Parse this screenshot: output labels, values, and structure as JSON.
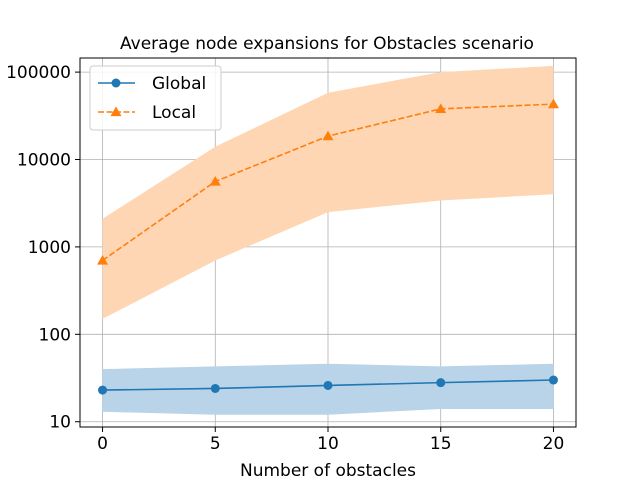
{
  "chart_data": {
    "type": "line",
    "title": "Average node expansions for Obstacles scenario",
    "xlabel": "Number of obstacles",
    "ylabel": "",
    "yscale": "log",
    "x": [
      0,
      5,
      10,
      15,
      20
    ],
    "xlim": [
      -1,
      21
    ],
    "ylim": [
      8.7,
      145000
    ],
    "xticks": [
      0,
      5,
      10,
      15,
      20
    ],
    "yticks": [
      10,
      100,
      1000,
      10000,
      100000
    ],
    "ytick_labels": [
      "10",
      "100",
      "1000",
      "10000",
      "100000"
    ],
    "grid": true,
    "legend_position": "top-left",
    "series": [
      {
        "name": "Global",
        "values": [
          23,
          24,
          26,
          28,
          30
        ],
        "band_lower": [
          13,
          12,
          12,
          14,
          14
        ],
        "band_upper": [
          40,
          43,
          46,
          43,
          46
        ],
        "color": "#1f77b4",
        "band_color": "#b9d4e9",
        "marker": "circle",
        "linestyle": "solid"
      },
      {
        "name": "Local",
        "values": [
          700,
          5600,
          18500,
          38000,
          43000
        ],
        "band_lower": [
          150,
          700,
          2500,
          3400,
          4000
        ],
        "band_upper": [
          2100,
          14000,
          58000,
          100000,
          118000
        ],
        "color": "#ff7f0e",
        "band_color": "#ffd6b4",
        "marker": "triangle",
        "linestyle": "dashed"
      }
    ]
  }
}
